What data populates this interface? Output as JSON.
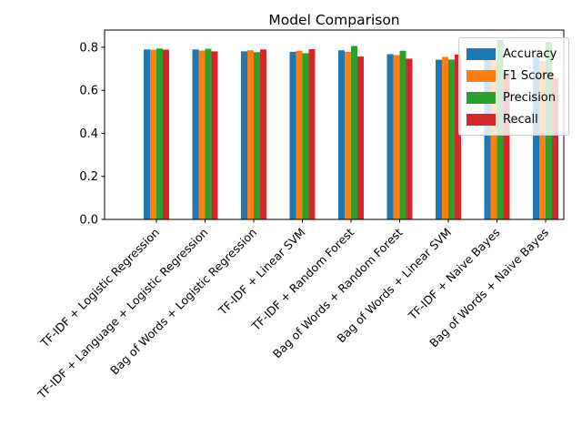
{
  "chart_data": {
    "type": "bar",
    "title": "Model Comparison",
    "xlabel": "",
    "ylabel": "",
    "categories": [
      "TF-IDF + Logistic Regression",
      "TF-IDF + Language + Logistic Regression",
      "Bag of Words + Logistic Regression",
      "TF-IDF + Linear SVM",
      "TF-IDF + Random Forest",
      "Bag of Words + Random Forest",
      "Bag of Words + Linear SVM",
      "TF-IDF + Naive Bayes",
      "Bag of Words + Naive Bayes"
    ],
    "series": [
      {
        "name": "Accuracy",
        "color": "#1f77b4",
        "values": [
          0.79,
          0.79,
          0.781,
          0.779,
          0.786,
          0.768,
          0.742,
          0.756,
          0.757
        ]
      },
      {
        "name": "F1 Score",
        "color": "#ff7f0e",
        "values": [
          0.788,
          0.785,
          0.786,
          0.784,
          0.779,
          0.764,
          0.755,
          0.745,
          0.736
        ]
      },
      {
        "name": "Precision",
        "color": "#2ca02c",
        "values": [
          0.794,
          0.793,
          0.777,
          0.772,
          0.806,
          0.784,
          0.743,
          0.834,
          0.824
        ]
      },
      {
        "name": "Recall",
        "color": "#d62728",
        "values": [
          0.789,
          0.781,
          0.79,
          0.791,
          0.757,
          0.747,
          0.766,
          0.671,
          0.654
        ]
      }
    ],
    "ylim": [
      0,
      0.88
    ],
    "yticks": [
      0.0,
      0.2,
      0.4,
      0.6,
      0.8
    ],
    "ytick_labels": [
      "0.0",
      "0.2",
      "0.4",
      "0.6",
      "0.8"
    ],
    "xtick_rotation_deg": 45,
    "legend_position": "upper right",
    "grid": false
  }
}
